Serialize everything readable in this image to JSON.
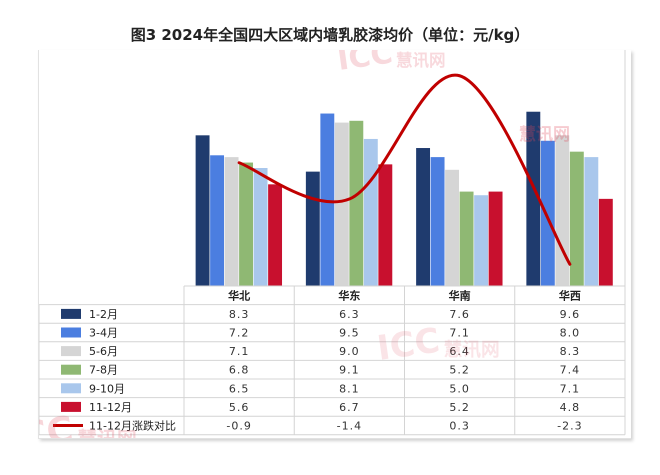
{
  "chart_data": {
    "type": "bar",
    "title": "图3 2024年全国四大区域内墙乳胶漆均价（单位：元/kg）",
    "categories": [
      "华北",
      "华东",
      "华南",
      "华西"
    ],
    "series": [
      {
        "name": "1-2月",
        "values": [
          8.3,
          6.3,
          7.6,
          9.6
        ],
        "color": "#1f3b6e",
        "label_values": [
          "8.3",
          "6.3",
          "7.6",
          "9.6"
        ]
      },
      {
        "name": "3-4月",
        "values": [
          7.2,
          9.5,
          7.1,
          8.0
        ],
        "color": "#4b7ee0",
        "label_values": [
          "7.2",
          "9.5",
          "7.1",
          "8.0"
        ]
      },
      {
        "name": "5-6月",
        "values": [
          7.1,
          9.0,
          6.4,
          8.3
        ],
        "color": "#d5d5d5",
        "label_values": [
          "7.1",
          "9.0",
          "6.4",
          "8.3"
        ]
      },
      {
        "name": "7-8月",
        "values": [
          6.8,
          9.1,
          5.2,
          7.4
        ],
        "color": "#8fb873",
        "label_values": [
          "6.8",
          "9.1",
          "5.2",
          "7.4"
        ]
      },
      {
        "name": "9-10月",
        "values": [
          6.5,
          8.1,
          5.0,
          7.1
        ],
        "color": "#a9c7ec",
        "label_values": [
          "6.5",
          "8.1",
          "5.0",
          "7.1"
        ]
      },
      {
        "name": "11-12月",
        "values": [
          5.6,
          6.7,
          5.2,
          4.8
        ],
        "color": "#c8102e",
        "label_values": [
          "5.6",
          "6.7",
          "5.2",
          "4.8"
        ]
      }
    ],
    "line_series": {
      "name": "11-12月涨跌对比",
      "values": [
        -0.9,
        -1.4,
        0.3,
        -2.3
      ],
      "label_values": [
        "-0.9",
        "-1.4",
        "0.3",
        "-2.3"
      ],
      "color": "#c00000",
      "smooth": true
    },
    "bar_ylim": [
      0,
      13
    ],
    "line_ylim": [
      -2.6,
      0.6
    ],
    "data_table": true,
    "grid": false
  },
  "watermark": {
    "text": "ICC",
    "subtext": "慧讯网",
    "color": "#e0475b"
  }
}
